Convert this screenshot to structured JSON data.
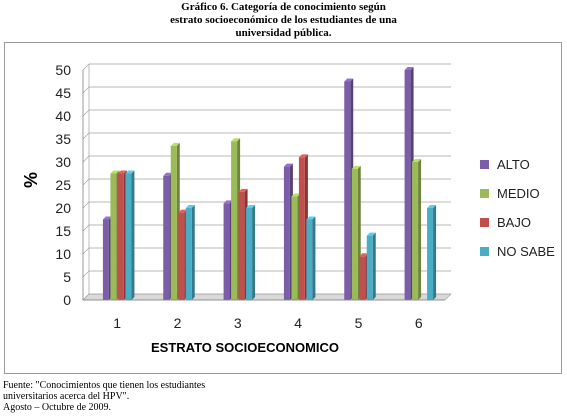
{
  "figure": {
    "title_lines": [
      "Gráfico 6. Categoría de conocimiento según",
      "estrato socioeconómico de los estudiantes de una",
      "universidad pública."
    ],
    "source_lines": [
      "Fuente: \"Conocimientos que tienen los estudiantes",
      "universitarios acerca del HPV\".",
      "Agosto – Octubre de 2009."
    ]
  },
  "chart_data": {
    "type": "bar",
    "categories": [
      "1",
      "2",
      "3",
      "4",
      "5",
      "6"
    ],
    "series": [
      {
        "name": "ALTO",
        "color": "#7b5ea7",
        "values": [
          17.5,
          27,
          21,
          29,
          47.5,
          50
        ]
      },
      {
        "name": "MEDIO",
        "color": "#9bbb59",
        "values": [
          27.5,
          33.5,
          34.5,
          22.5,
          28.5,
          30
        ]
      },
      {
        "name": "BAJO",
        "color": "#c0504d",
        "values": [
          27.5,
          19,
          23.5,
          31,
          9.5,
          0
        ]
      },
      {
        "name": "NO SABE",
        "color": "#4bacc6",
        "values": [
          27.5,
          20,
          20,
          17.5,
          14,
          20
        ]
      }
    ],
    "xlabel": "ESTRATO SOCIOECONOMICO",
    "ylabel": "%",
    "ylim": [
      0,
      50
    ],
    "yticks": [
      "0",
      "5",
      "10",
      "15",
      "20",
      "25",
      "30",
      "35",
      "40",
      "45",
      "50"
    ],
    "grid": true,
    "legend": "right"
  }
}
